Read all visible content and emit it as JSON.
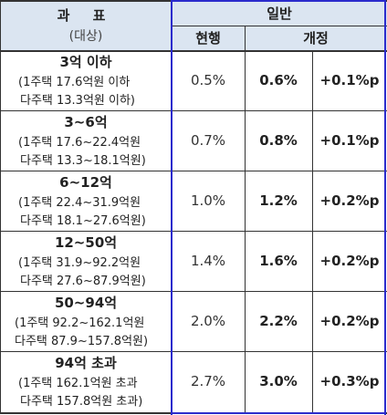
{
  "header": {
    "category_title": "과  표",
    "category_sub": "(대상)",
    "general": "일반",
    "current": "현행",
    "revised": "개정"
  },
  "rows": [
    {
      "title": "3억 이하",
      "line1": "(1주택 17.6억원 이하",
      "line2": "다주택 13.3억원 이하)",
      "current": "0.5%",
      "revised": "0.6%",
      "diff": "+0.1%p"
    },
    {
      "title": "3~6억",
      "line1": "(1주택 17.6~22.4억원",
      "line2": "다주택 13.3~18.1억원)",
      "current": "0.7%",
      "revised": "0.8%",
      "diff": "+0.1%p"
    },
    {
      "title": "6~12억",
      "line1": "(1주택 22.4~31.9억원",
      "line2": "다주택 18.1~27.6억원)",
      "current": "1.0%",
      "revised": "1.2%",
      "diff": "+0.2%p"
    },
    {
      "title": "12~50억",
      "line1": "(1주택 31.9~92.2억원",
      "line2": "다주택 27.6~87.9억원)",
      "current": "1.4%",
      "revised": "1.6%",
      "diff": "+0.2%p"
    },
    {
      "title": "50~94억",
      "line1": "(1주택 92.2~162.1억원",
      "line2": "다주택 87.9~157.8억원)",
      "current": "2.0%",
      "revised": "2.2%",
      "diff": "+0.2%p"
    },
    {
      "title": "94억 초과",
      "line1": "(1주택 162.1억원 초과",
      "line2": "다주택 157.8억원 초과)",
      "current": "2.7%",
      "revised": "3.0%",
      "diff": "+0.3%p"
    }
  ],
  "colors": {
    "header_bg": "#dbe5f1",
    "highlight_border": "#2b2bcc"
  }
}
